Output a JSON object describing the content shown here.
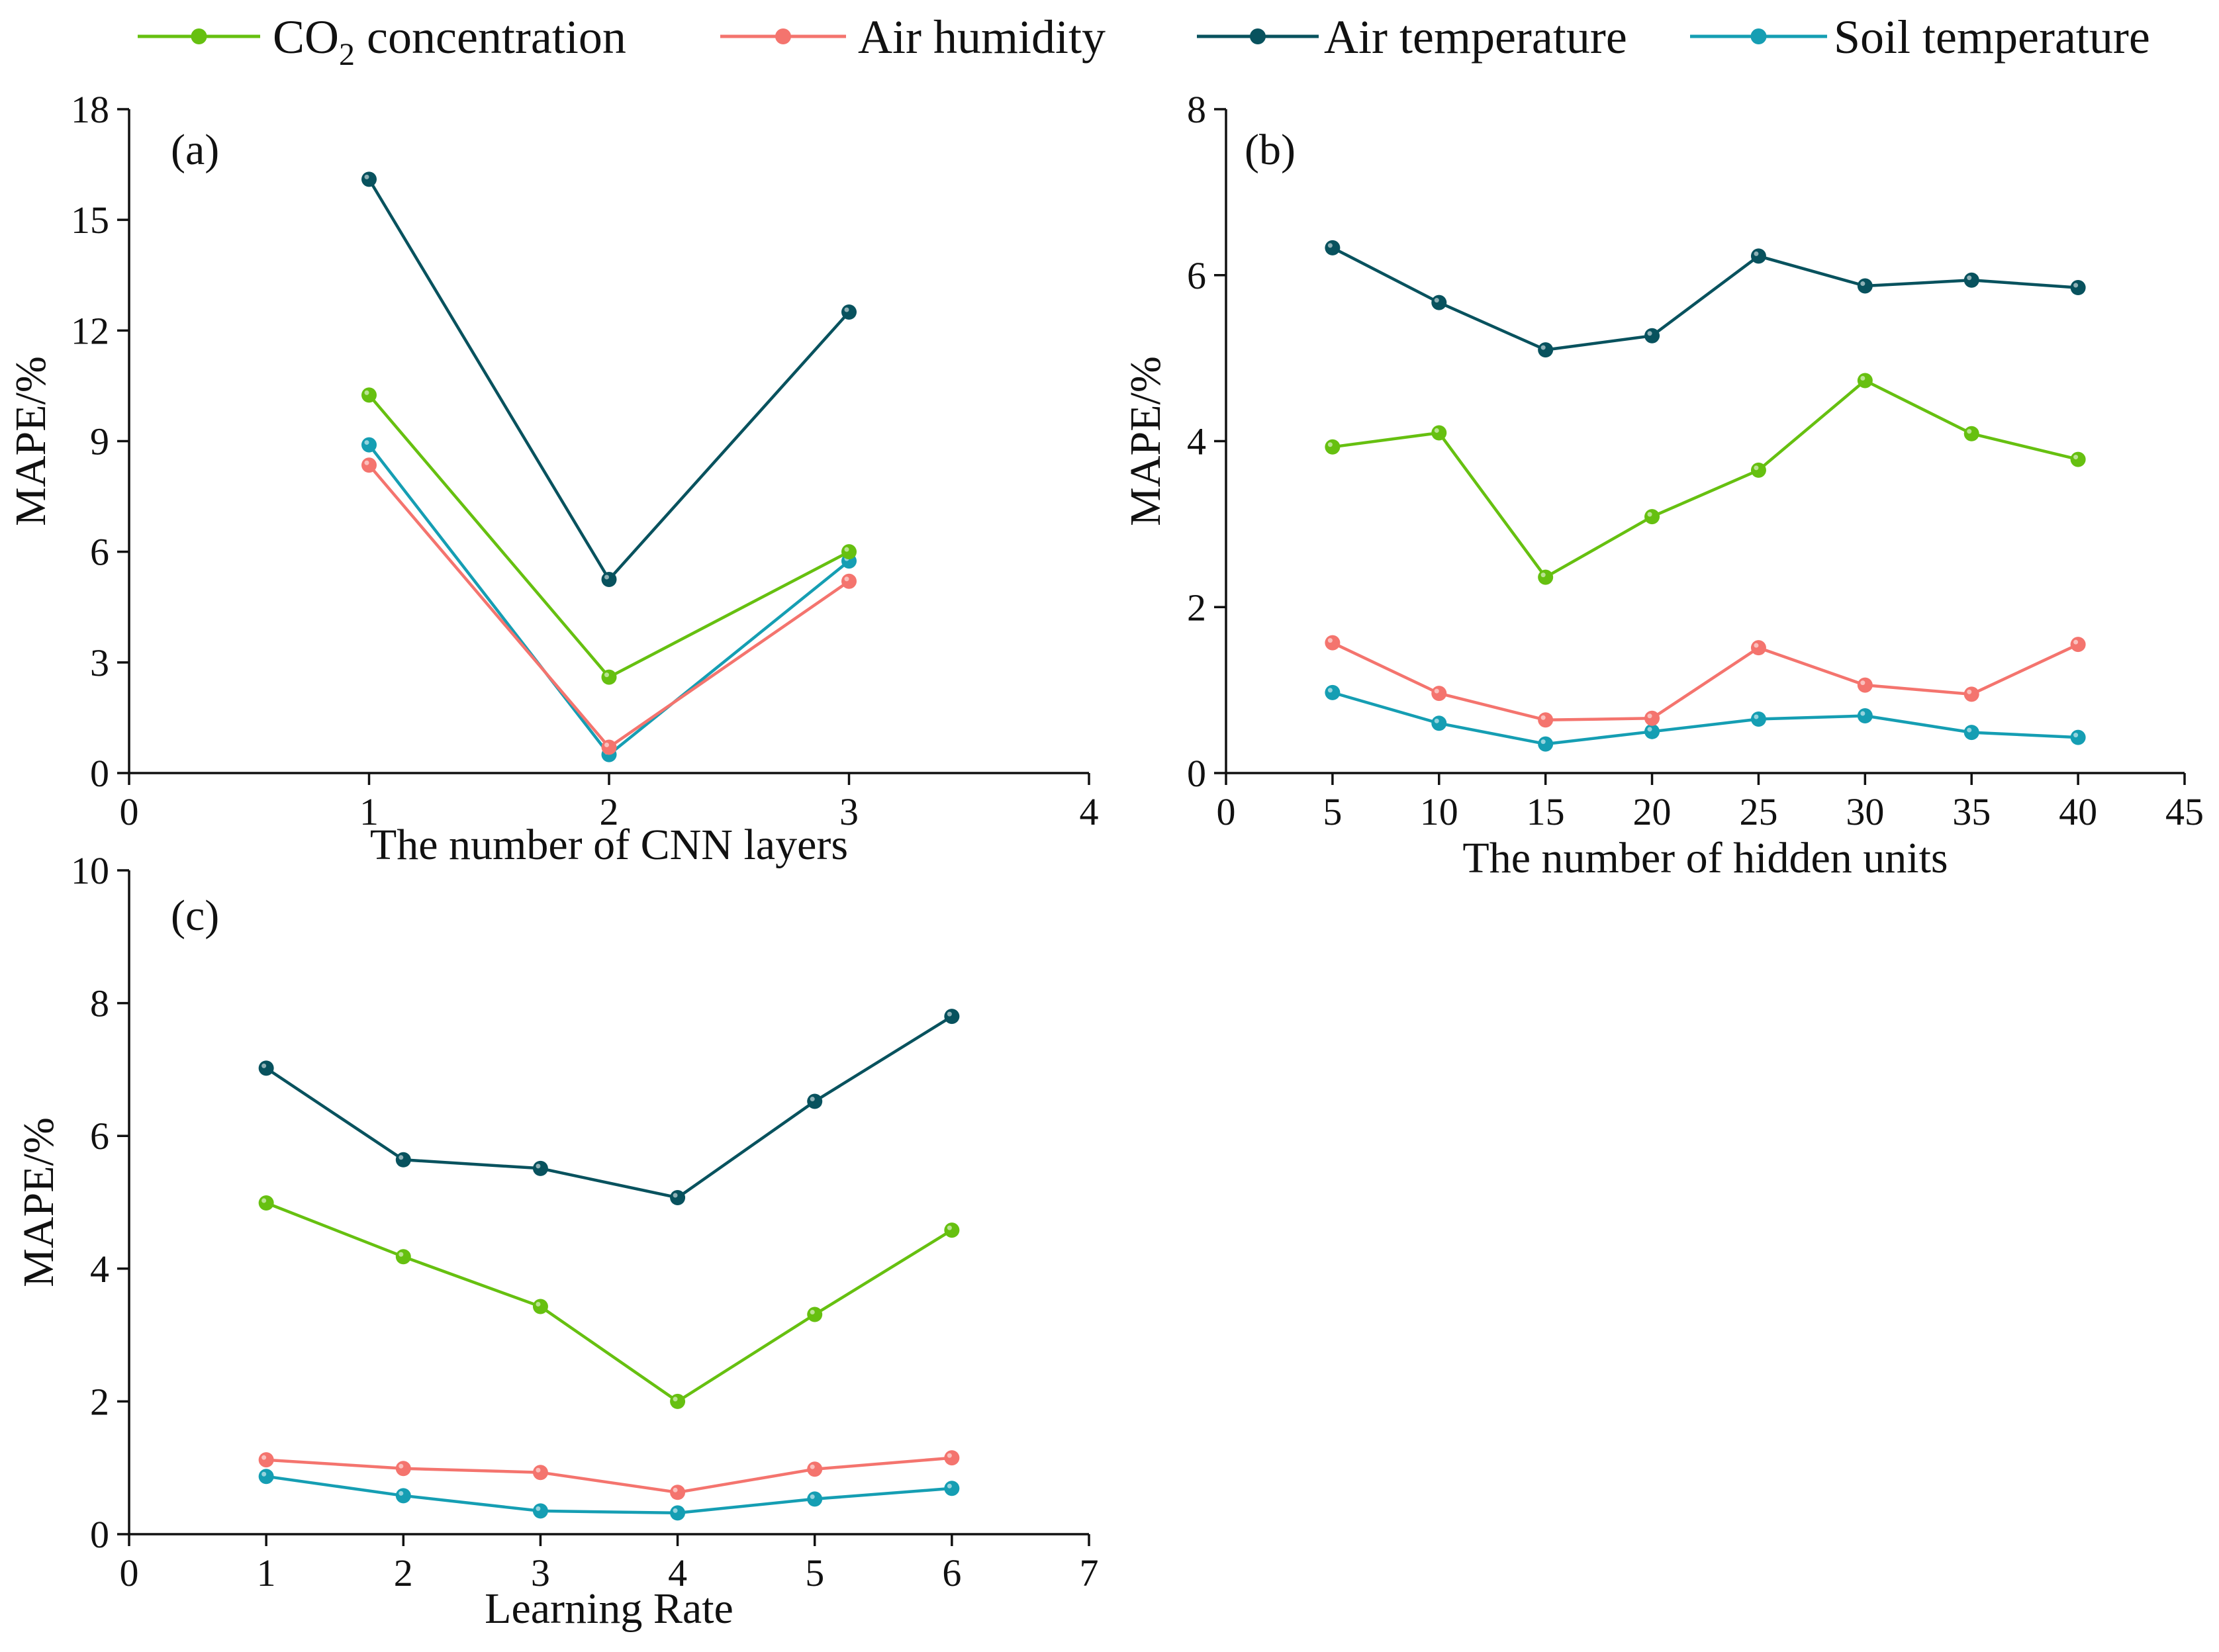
{
  "colors": {
    "co2": "#66c010",
    "humidity": "#f4746e",
    "air_temp": "#08525e",
    "soil_temp": "#159eb3",
    "axis": "#111111"
  },
  "legend": [
    {
      "key": "co2",
      "text": "CO",
      "sub": "2",
      "rest": " concentration"
    },
    {
      "key": "humidity",
      "text": "Air humidity",
      "sub": "",
      "rest": ""
    },
    {
      "key": "air_temp",
      "text": "Air temperature",
      "sub": "",
      "rest": ""
    },
    {
      "key": "soil_temp",
      "text": "Soil temperature",
      "sub": "",
      "rest": ""
    }
  ],
  "chart_data": [
    {
      "type": "line",
      "panel_label": "(a)",
      "xlabel": "The number of CNN layers",
      "ylabel": "MAPE/%",
      "xlim": [
        0,
        4
      ],
      "ylim": [
        0,
        18
      ],
      "xticks": [
        0,
        1,
        2,
        3,
        4
      ],
      "yticks": [
        0,
        3,
        6,
        9,
        12,
        15,
        18
      ],
      "x": [
        1,
        2,
        3
      ],
      "series": [
        {
          "key": "air_temp",
          "name": "Air temperature",
          "values": [
            16.1,
            5.25,
            12.5
          ]
        },
        {
          "key": "co2",
          "name": "CO2 concentration",
          "values": [
            10.25,
            2.6,
            6.0
          ]
        },
        {
          "key": "soil_temp",
          "name": "Soil temperature",
          "values": [
            8.9,
            0.5,
            5.75
          ]
        },
        {
          "key": "humidity",
          "name": "Air humidity",
          "values": [
            8.35,
            0.7,
            5.2
          ]
        }
      ]
    },
    {
      "type": "line",
      "panel_label": "(b)",
      "xlabel": "The number of hidden units",
      "ylabel": "MAPE/%",
      "xlim": [
        0,
        45
      ],
      "ylim": [
        0,
        8
      ],
      "xticks": [
        0,
        5,
        10,
        15,
        20,
        25,
        30,
        35,
        40,
        45
      ],
      "yticks": [
        0,
        2,
        4,
        6,
        8
      ],
      "x": [
        5,
        10,
        15,
        20,
        25,
        30,
        35,
        40
      ],
      "series": [
        {
          "key": "air_temp",
          "name": "Air temperature",
          "values": [
            6.33,
            5.67,
            5.1,
            5.27,
            6.23,
            5.87,
            5.94,
            5.85
          ]
        },
        {
          "key": "co2",
          "name": "CO2 concentration",
          "values": [
            3.93,
            4.1,
            2.36,
            3.09,
            3.65,
            4.73,
            4.09,
            3.78
          ]
        },
        {
          "key": "humidity",
          "name": "Air humidity",
          "values": [
            1.57,
            0.96,
            0.64,
            0.66,
            1.51,
            1.06,
            0.95,
            1.55
          ]
        },
        {
          "key": "soil_temp",
          "name": "Soil temperature",
          "values": [
            0.97,
            0.6,
            0.35,
            0.5,
            0.65,
            0.69,
            0.49,
            0.43
          ]
        }
      ]
    },
    {
      "type": "line",
      "panel_label": "(c)",
      "xlabel": "Learning Rate",
      "ylabel": "MAPE/%",
      "xlim": [
        0,
        7
      ],
      "ylim": [
        0,
        10
      ],
      "xticks": [
        0,
        1,
        2,
        3,
        4,
        5,
        6,
        7
      ],
      "yticks": [
        0,
        2,
        4,
        6,
        8,
        10
      ],
      "x": [
        1,
        2,
        3,
        4,
        5,
        6
      ],
      "series": [
        {
          "key": "air_temp",
          "name": "Air temperature",
          "values": [
            7.02,
            5.64,
            5.51,
            5.07,
            6.52,
            7.8
          ]
        },
        {
          "key": "co2",
          "name": "CO2 concentration",
          "values": [
            4.99,
            4.18,
            3.43,
            2.0,
            3.31,
            4.58
          ]
        },
        {
          "key": "humidity",
          "name": "Air humidity",
          "values": [
            1.12,
            0.99,
            0.93,
            0.63,
            0.98,
            1.15
          ]
        },
        {
          "key": "soil_temp",
          "name": "Soil temperature",
          "values": [
            0.87,
            0.58,
            0.35,
            0.32,
            0.53,
            0.69
          ]
        }
      ]
    }
  ]
}
